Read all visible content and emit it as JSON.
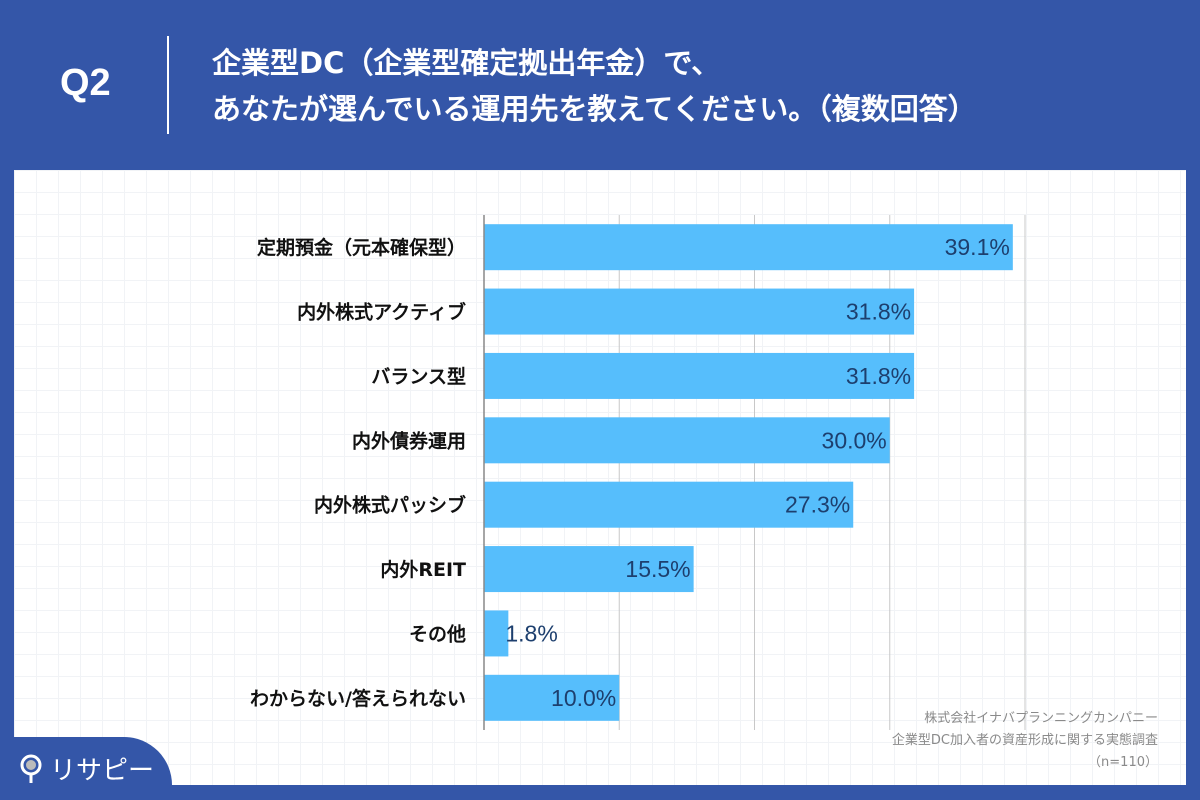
{
  "header": {
    "question_no": "Q2",
    "title_line1": "企業型DC（企業型確定拠出年金）で、",
    "title_line2": "あなたが選んでいる運用先を教えてください。（複数回答）"
  },
  "chart_data": {
    "type": "bar",
    "orientation": "horizontal",
    "categories": [
      "定期預金（元本確保型）",
      "内外株式アクティブ",
      "バランス型",
      "内外債券運用",
      "内外株式パッシブ",
      "内外REIT",
      "その他",
      "わからない/答えられない"
    ],
    "values": [
      39.1,
      31.8,
      31.8,
      30.0,
      27.3,
      15.5,
      1.8,
      10.0
    ],
    "data_labels": [
      "39.1%",
      "31.8%",
      "31.8%",
      "30.0%",
      "27.3%",
      "15.5%",
      "1.8%",
      "10.0%"
    ],
    "unit": "%",
    "xlim": [
      0,
      40
    ],
    "gridlines_at": [
      10,
      20,
      30,
      40
    ],
    "grid": true,
    "bar_color": "#56befc",
    "label_color": "#1d3f6e"
  },
  "source": {
    "line1": "株式会社イナバプランニングカンパニー",
    "line2": "企業型DC加入者の資産形成に関する実態調査",
    "line3": "（n=110）"
  },
  "logo": {
    "text": "リサピー"
  },
  "colors": {
    "brand": "#3456a8"
  }
}
